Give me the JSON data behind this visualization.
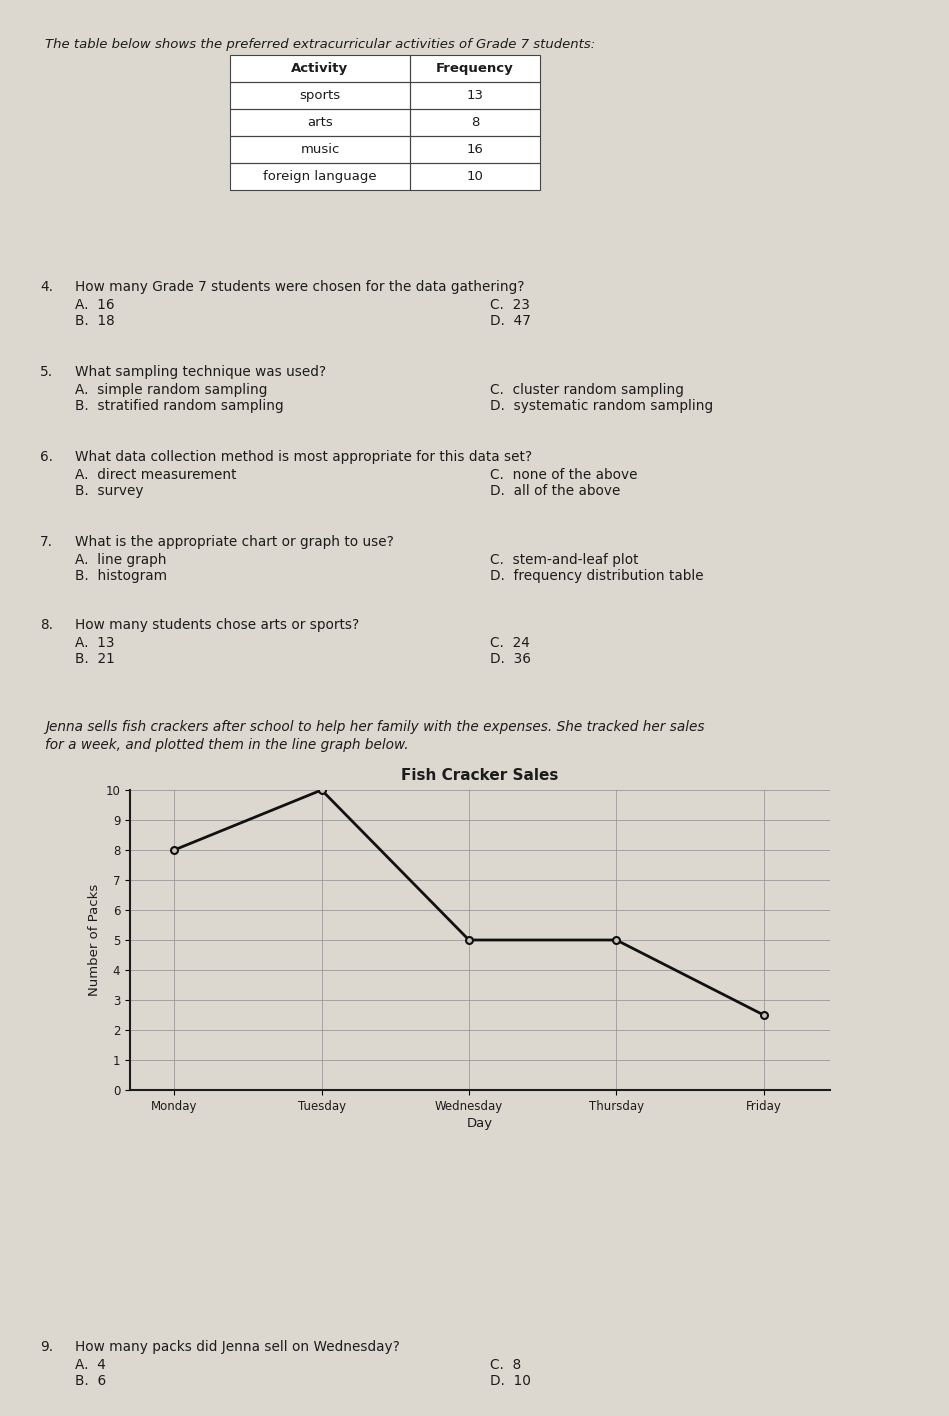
{
  "bg_color": "#ddd8cf",
  "page_title_intro": "The table below shows the preferred extracurricular activities of Grade 7 students:",
  "table_headers": [
    "Activity",
    "Frequency"
  ],
  "table_rows": [
    [
      "sports",
      "13"
    ],
    [
      "arts",
      "8"
    ],
    [
      "music",
      "16"
    ],
    [
      "foreign language",
      "10"
    ]
  ],
  "questions": [
    {
      "num": "4.",
      "text": "How many Grade 7 students were chosen for the data gathering?",
      "choices_left": [
        "A.  16",
        "B.  18"
      ],
      "choices_right": [
        "C.  23",
        "D.  47"
      ]
    },
    {
      "num": "5.",
      "text": "What sampling technique was used?",
      "choices_left": [
        "A.  simple random sampling",
        "B.  stratified random sampling"
      ],
      "choices_right": [
        "C.  cluster random sampling",
        "D.  systematic random sampling"
      ]
    },
    {
      "num": "6.",
      "text": "What data collection method is most appropriate for this data set?",
      "choices_left": [
        "A.  direct measurement",
        "B.  survey"
      ],
      "choices_right": [
        "C.  none of the above",
        "D.  all of the above"
      ]
    },
    {
      "num": "7.",
      "text": "What is the appropriate chart or graph to use?",
      "choices_left": [
        "A.  line graph",
        "B.  histogram"
      ],
      "choices_right": [
        "C.  stem-and-leaf plot",
        "D.  frequency distribution table"
      ]
    },
    {
      "num": "8.",
      "text": "How many students chose arts or sports?",
      "choices_left": [
        "A.  13",
        "B.  21"
      ],
      "choices_right": [
        "C.  24",
        "D.  36"
      ]
    }
  ],
  "story_line1": "Jenna sells fish crackers after school to help her family with the expenses. She tracked her sales",
  "story_line2": "for a week, and plotted them in the line graph below.",
  "graph_title": "Fish Cracker Sales",
  "graph_xlabel": "Day",
  "graph_ylabel": "Number of Packs",
  "graph_days": [
    "Monday",
    "Tuesday",
    "Wednesday",
    "Thursday",
    "Friday"
  ],
  "graph_values": [
    8,
    10,
    5,
    5,
    2.5
  ],
  "graph_ylim": [
    0,
    10
  ],
  "graph_yticks": [
    0,
    1,
    2,
    3,
    4,
    5,
    6,
    7,
    8,
    9,
    10
  ],
  "question9": {
    "num": "9.",
    "text": "How many packs did Jenna sell on Wednesday?",
    "choices_left": [
      "A.  4",
      "B.  6"
    ],
    "choices_right": [
      "C.  8",
      "D.  10"
    ]
  },
  "text_color": "#1c1c1c",
  "table_border_color": "#444444",
  "line_color": "#111111",
  "marker_facecolor": "#c8c4bc",
  "grid_color": "#999999"
}
